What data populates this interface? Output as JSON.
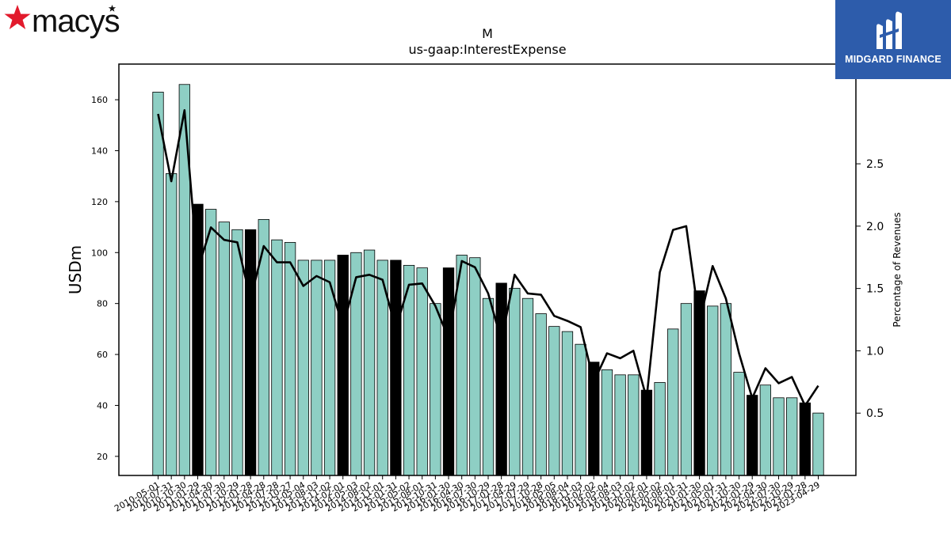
{
  "brand": {
    "name": "macys",
    "star_color": "#e21a2c"
  },
  "publisher": {
    "name": "MIDGARD FINANCE",
    "bg_color": "#2d5cab"
  },
  "chart_data": {
    "type": "bar",
    "title": "M",
    "subtitle": "us-gaap:InterestExpense",
    "ylabel": "USDm",
    "y2label": "Percentage of Revenues",
    "ylim": [
      12.5,
      174
    ],
    "y2lim": [
      0.0,
      3.3
    ],
    "yticks": [
      20,
      40,
      60,
      80,
      100,
      120,
      140,
      160
    ],
    "y2ticks": [
      0.5,
      1.0,
      1.5,
      2.0,
      2.5
    ],
    "y2tick_labels": [
      "0.5",
      "1.0",
      "1.5",
      "2.0",
      "2.5"
    ],
    "grid": false,
    "bar_color": "#8ecfc4",
    "highlight_color": "#000000",
    "line_color": "#000000",
    "categories": [
      "2010-05-01",
      "2010-07-31",
      "2010-10-30",
      "2011-01-29",
      "2011-04-30",
      "2011-07-30",
      "2011-10-29",
      "2012-01-28",
      "2012-04-28",
      "2012-07-28",
      "2012-10-27",
      "2013-05-04",
      "2013-08-03",
      "2013-11-02",
      "2014-02-01",
      "2014-05-03",
      "2014-08-02",
      "2014-11-01",
      "2015-01-31",
      "2015-05-02",
      "2015-08-01",
      "2015-10-31",
      "2016-01-30",
      "2016-04-30",
      "2016-07-30",
      "2016-10-29",
      "2017-01-28",
      "2017-04-29",
      "2017-07-29",
      "2017-10-28",
      "2018-05-05",
      "2018-08-04",
      "2018-11-03",
      "2019-02-02",
      "2019-05-04",
      "2019-08-03",
      "2019-11-02",
      "2020-02-01",
      "2020-05-02",
      "2020-08-01",
      "2020-10-31",
      "2021-01-30",
      "2021-05-01",
      "2021-07-31",
      "2021-10-30",
      "2022-01-29",
      "2022-04-30",
      "2022-07-30",
      "2022-10-29",
      "2023-01-28",
      "2023-04-29"
    ],
    "tick_labels": [
      "2010-05-01",
      "2010-07-31",
      "2010-10-30",
      "2011-01-29",
      "2011-04-30",
      "2011-07-30",
      "2011-10-29",
      "2012-01-28",
      "2012-04-28",
      "2012-07-28",
      "2012-10-27",
      "2013-05-04",
      "2013-08-03",
      "2013-11-02",
      "2014-02-01",
      "2014-05-03",
      "2014-08-02",
      "2014-11-01",
      "2015-01-31",
      "2015-05-02",
      "2015-08-01",
      "2015-10-31",
      "2016-01-30",
      "2016-04-30",
      "2016-07-30",
      "2016-10-29",
      "2017-01-28",
      "2017-04-29",
      "2017-07-29",
      "2017-10-28",
      "2018-05-05",
      "2018-08-04",
      "2018-11-03",
      "2019-02-02",
      "2019-05-04",
      "2019-08-03",
      "2019-11-02",
      "2020-02-01",
      "2020-05-02",
      "2020-08-01",
      "2020-10-31",
      "2021-01-30",
      "2021-05-01",
      "2021-07-31",
      "2021-10-30",
      "2022-01-29",
      "2022-04-30",
      "2022-07-30",
      "2022-10-29",
      "2023-01-28",
      "2023-04-29"
    ],
    "values": [
      163,
      131,
      166,
      119,
      117,
      112,
      109,
      109,
      113,
      105,
      104,
      97,
      97,
      97,
      99,
      100,
      101,
      97,
      97,
      95,
      94,
      80,
      94,
      99,
      98,
      82,
      88,
      86,
      82,
      76,
      71,
      69,
      64,
      57,
      54,
      52,
      52,
      46,
      49,
      70,
      80,
      85,
      79,
      80,
      53,
      44,
      48,
      43,
      43,
      41,
      37
    ],
    "highlighted": [
      false,
      false,
      false,
      true,
      false,
      false,
      false,
      true,
      false,
      false,
      false,
      false,
      false,
      false,
      true,
      false,
      false,
      false,
      true,
      false,
      false,
      false,
      true,
      false,
      false,
      false,
      true,
      false,
      false,
      false,
      false,
      false,
      false,
      true,
      false,
      false,
      false,
      true,
      false,
      false,
      false,
      true,
      false,
      false,
      false,
      true,
      false,
      false,
      false,
      true,
      false
    ],
    "series": [
      {
        "name": "",
        "axis": "right",
        "values": [
          2.9,
          2.36,
          2.93,
          1.65,
          1.99,
          1.89,
          1.87,
          1.41,
          1.84,
          1.71,
          1.71,
          1.52,
          1.6,
          1.55,
          1.19,
          1.59,
          1.61,
          1.57,
          1.18,
          1.53,
          1.54,
          1.36,
          1.1,
          1.72,
          1.67,
          1.46,
          1.08,
          1.61,
          1.46,
          1.45,
          1.28,
          1.24,
          1.19,
          0.75,
          0.98,
          0.94,
          1.0,
          0.62,
          1.63,
          1.97,
          2.0,
          1.23,
          1.68,
          1.42,
          0.98,
          0.62,
          0.86,
          0.74,
          0.79,
          0.56,
          0.72
        ]
      }
    ]
  }
}
